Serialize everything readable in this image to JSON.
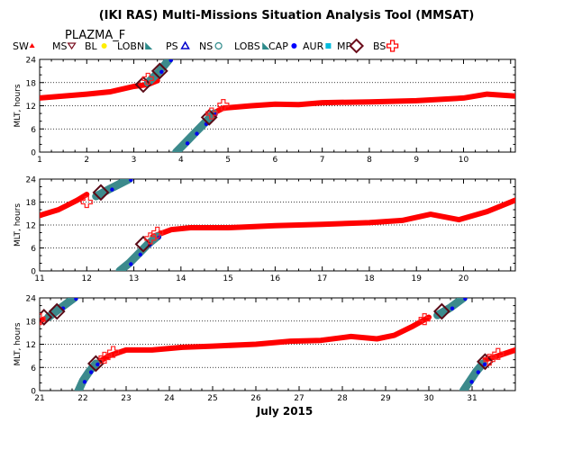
{
  "title": "(IKI RAS) Multi-Missions Situation Analysis Tool (MMSAT)",
  "subtitle": "PLAZMA_F",
  "legend": [
    {
      "label": "SW",
      "color": "#ff0000",
      "marker": "triangle-small"
    },
    {
      "label": "MS",
      "color": "#7a1020",
      "marker": "triangle-down"
    },
    {
      "label": "BL",
      "color": "#ffee00",
      "marker": "dot"
    },
    {
      "label": "LOBN",
      "color": "#2e8b8b",
      "marker": "wedge"
    },
    {
      "label": "PS",
      "color": "#0000cc",
      "marker": "triangle-open"
    },
    {
      "label": "NS",
      "color": "#2e8b8b",
      "marker": "circle-open"
    },
    {
      "label": "LOBS",
      "color": "#2e8b8b",
      "marker": "wedge"
    },
    {
      "label": "CAP",
      "color": "#0000ff",
      "marker": "dot"
    },
    {
      "label": "AUR",
      "color": "#00bbdd",
      "marker": "square"
    },
    {
      "label": "MP",
      "color": "#6b0c1a",
      "marker": "diamond-open"
    },
    {
      "label": "BS",
      "color": "#ff0000",
      "marker": "cross-open"
    }
  ],
  "colors": {
    "sw": "#ff0000",
    "sheet": "#3c8a8c",
    "bs": "#ff2020",
    "mp": "#5a0a16",
    "cap": "#0000ee",
    "bl": "#ffee00"
  },
  "xlabel": "July 2015",
  "chart_data": [
    {
      "type": "scatter",
      "ylabel": "MLT, hours",
      "xlim": [
        1,
        11.1
      ],
      "ylim": [
        0,
        24
      ],
      "xticks": [
        "1",
        "2",
        "3",
        "4",
        "5",
        "6",
        "7",
        "8",
        "9",
        "10"
      ],
      "yticks": [
        "0",
        "6",
        "12",
        "18",
        "24"
      ],
      "series": [
        {
          "role": "sw",
          "x": [
            1,
            1.5,
            2,
            2.5,
            3,
            3.3,
            3.5
          ],
          "y": [
            14,
            14.5,
            15,
            15.6,
            17,
            17.5,
            18.5
          ]
        },
        {
          "role": "sw",
          "x": [
            4.6,
            4.9,
            5.5,
            6,
            6.5,
            7,
            8,
            9,
            10,
            10.5,
            11.1
          ],
          "y": [
            9.5,
            11.4,
            12.0,
            12.4,
            12.3,
            12.8,
            13.0,
            13.3,
            14.0,
            15.0,
            14.5
          ]
        },
        {
          "role": "sheet",
          "x": [
            3.9,
            4.1,
            4.3,
            4.5,
            4.7
          ],
          "y": [
            0,
            2.5,
            5,
            7.5,
            10
          ]
        },
        {
          "role": "sheet",
          "x": [
            3.3,
            3.55,
            3.75
          ],
          "y": [
            18,
            21,
            24
          ]
        }
      ],
      "mp": [
        {
          "x": 3.2,
          "y": 17.5
        },
        {
          "x": 3.55,
          "y": 21
        },
        {
          "x": 4.6,
          "y": 9
        }
      ],
      "bs": [
        {
          "x": 3.3,
          "y": 19
        },
        {
          "x": 4.65,
          "y": 10
        },
        {
          "x": 4.9,
          "y": 12.2
        }
      ]
    },
    {
      "type": "scatter",
      "ylabel": "MLT, hours",
      "xlim": [
        11,
        21.1
      ],
      "ylim": [
        0,
        24
      ],
      "xticks": [
        "11",
        "12",
        "13",
        "14",
        "15",
        "16",
        "17",
        "18",
        "19",
        "20"
      ],
      "yticks": [
        "0",
        "6",
        "12",
        "18",
        "24"
      ],
      "series": [
        {
          "role": "sw",
          "x": [
            11,
            11.4,
            11.8,
            12
          ],
          "y": [
            14.5,
            16,
            18.5,
            20
          ]
        },
        {
          "role": "sw",
          "x": [
            13.4,
            13.8,
            14.2,
            15,
            16,
            17,
            18,
            18.7,
            19.3,
            19.9,
            20.5,
            21.1
          ],
          "y": [
            9,
            10.8,
            11.3,
            11.3,
            11.8,
            12.2,
            12.6,
            13.2,
            14.8,
            13.4,
            15.5,
            18.5
          ]
        },
        {
          "role": "sheet",
          "x": [
            12.2,
            12.5,
            12.9
          ],
          "y": [
            19.5,
            21.5,
            24
          ]
        },
        {
          "role": "sheet",
          "x": [
            12.7,
            12.9,
            13.1,
            13.3,
            13.5
          ],
          "y": [
            0,
            2,
            4.5,
            7,
            9
          ]
        }
      ],
      "mp": [
        {
          "x": 12.3,
          "y": 20.5
        },
        {
          "x": 13.2,
          "y": 7
        }
      ],
      "bs": [
        {
          "x": 12.0,
          "y": 18
        },
        {
          "x": 13.35,
          "y": 8.5
        },
        {
          "x": 13.5,
          "y": 10
        }
      ]
    },
    {
      "type": "scatter",
      "ylabel": "MLT, hours",
      "xlim": [
        21,
        32
      ],
      "ylim": [
        0,
        24
      ],
      "xticks": [
        "21",
        "22",
        "23",
        "24",
        "25",
        "26",
        "27",
        "28",
        "29",
        "30",
        "31"
      ],
      "yticks": [
        "0",
        "6",
        "12",
        "18",
        "24"
      ],
      "series": [
        {
          "role": "sw",
          "x": [
            21,
            21.3
          ],
          "y": [
            18,
            19.5
          ]
        },
        {
          "role": "sw",
          "x": [
            22.3,
            22.6,
            23,
            23.6,
            24.3,
            25,
            26,
            26.8,
            27.5,
            28.2,
            28.8,
            29.2,
            29.6,
            30.0
          ],
          "y": [
            7,
            9,
            10.5,
            10.5,
            11.2,
            11.5,
            12,
            12.8,
            13.0,
            14.0,
            13.4,
            14.3,
            16.5,
            19
          ]
        },
        {
          "role": "sw",
          "x": [
            31.3,
            31.6,
            32
          ],
          "y": [
            8,
            9,
            10.5
          ]
        },
        {
          "role": "sheet",
          "x": [
            21.2,
            21.5,
            21.8
          ],
          "y": [
            19,
            21.5,
            24
          ]
        },
        {
          "role": "sheet",
          "x": [
            21.9,
            22.0,
            22.15,
            22.3
          ],
          "y": [
            0,
            2.5,
            5,
            7
          ]
        },
        {
          "role": "sheet",
          "x": [
            30.2,
            30.5,
            30.8
          ],
          "y": [
            19.5,
            21.5,
            24
          ]
        },
        {
          "role": "sheet",
          "x": [
            30.8,
            30.95,
            31.1,
            31.25
          ],
          "y": [
            0,
            2.5,
            5,
            7
          ]
        }
      ],
      "mp": [
        {
          "x": 21.1,
          "y": 19
        },
        {
          "x": 21.4,
          "y": 20.5
        },
        {
          "x": 22.3,
          "y": 7
        },
        {
          "x": 30.3,
          "y": 20.5
        },
        {
          "x": 31.3,
          "y": 7.5
        }
      ],
      "bs": [
        {
          "x": 21.0,
          "y": 18.5
        },
        {
          "x": 22.5,
          "y": 8.5
        },
        {
          "x": 22.7,
          "y": 10
        },
        {
          "x": 29.9,
          "y": 18.5
        },
        {
          "x": 31.4,
          "y": 8
        },
        {
          "x": 31.6,
          "y": 9.5
        }
      ]
    }
  ]
}
